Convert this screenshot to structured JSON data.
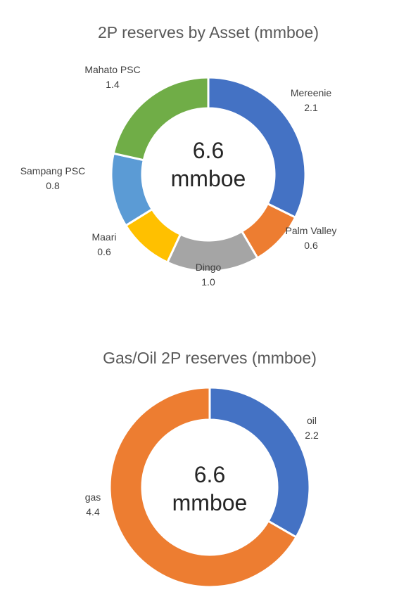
{
  "chart_data": [
    {
      "type": "pie",
      "title": "2P reserves by Asset (mmboe)",
      "center_value": "6.6",
      "center_unit": "mmboe",
      "slices": [
        {
          "label": "Mereenie",
          "value": 2.1,
          "value_text": "2.1",
          "color": "#4472C4"
        },
        {
          "label": "Palm Valley",
          "value": 0.6,
          "value_text": "0.6",
          "color": "#ED7D31"
        },
        {
          "label": "Dingo",
          "value": 1.0,
          "value_text": "1.0",
          "color": "#A5A5A5"
        },
        {
          "label": "Maari",
          "value": 0.6,
          "value_text": "0.6",
          "color": "#FFC000"
        },
        {
          "label": "Sampang PSC",
          "value": 0.8,
          "value_text": "0.8",
          "color": "#5B9BD5"
        },
        {
          "label": "Mahato PSC",
          "value": 1.4,
          "value_text": "1.4",
          "color": "#70AD47"
        }
      ]
    },
    {
      "type": "pie",
      "title": "Gas/Oil 2P reserves (mmboe)",
      "center_value": "6.6",
      "center_unit": "mmboe",
      "slices": [
        {
          "label": "oil",
          "value": 2.2,
          "value_text": "2.2",
          "color": "#4472C4"
        },
        {
          "label": "gas",
          "value": 4.4,
          "value_text": "4.4",
          "color": "#ED7D31"
        }
      ]
    }
  ]
}
